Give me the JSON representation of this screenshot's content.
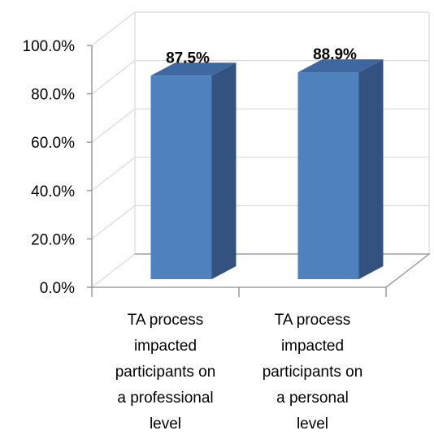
{
  "chart_data": {
    "type": "bar",
    "categories": [
      "TA process impacted participants on a professional level",
      "TA process impacted participants on a personal level"
    ],
    "category_label_lines": [
      [
        "TA process",
        "impacted",
        "participants on",
        "a professional",
        "level"
      ],
      [
        "TA process",
        "impacted",
        "participants on",
        "a personal",
        "level"
      ]
    ],
    "values": [
      87.5,
      88.9
    ],
    "data_labels": [
      "87.5%",
      "88.9%"
    ],
    "yticks": [
      0,
      20,
      40,
      60,
      80,
      100
    ],
    "ytick_labels": [
      "0.0%",
      "20.0%",
      "40.0%",
      "60.0%",
      "80.0%",
      "100.0%"
    ],
    "ylim": [
      0,
      100
    ],
    "title": "",
    "xlabel": "",
    "ylabel": "",
    "grid": true,
    "legend": "none",
    "three_d": true,
    "colors": {
      "bar_front": "#4F81BD",
      "bar_side": "#34527F",
      "bar_top": "#3F68A0",
      "grid": "#D9D9D9",
      "axis": "#8C8C8C"
    }
  }
}
